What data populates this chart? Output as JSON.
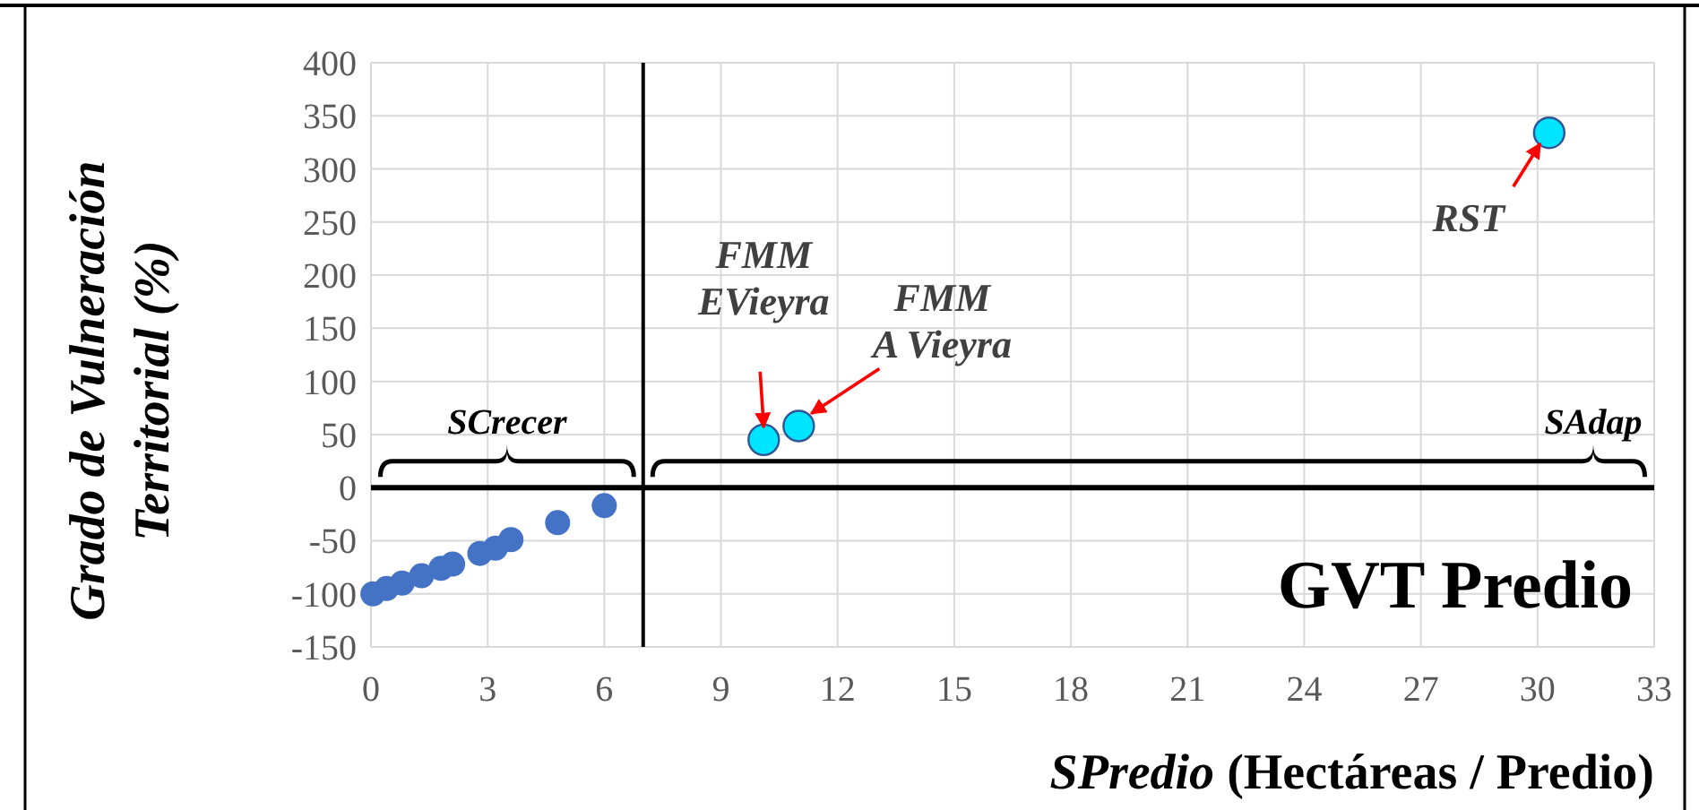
{
  "chart_data": {
    "type": "scatter",
    "xlabel": "SPredio (Hectáreas / Predio)",
    "ylabel": "Grado de Vulneración Territorial (%)",
    "xlim": [
      0,
      33
    ],
    "xticks": [
      0,
      3,
      6,
      9,
      12,
      15,
      18,
      21,
      24,
      27,
      30,
      33
    ],
    "ylim": [
      -150,
      400
    ],
    "yticks": [
      -150,
      -100,
      -50,
      0,
      50,
      100,
      150,
      200,
      250,
      300,
      350,
      400
    ],
    "grid": true,
    "marker": "circle",
    "series": [
      {
        "color": "#4472c4",
        "x": [
          0.05,
          0.4,
          0.8,
          1.3,
          1.8,
          2.1,
          2.8,
          3.2,
          3.6,
          4.8,
          6.0
        ],
        "values": [
          -100,
          -95,
          -90,
          -83,
          -76,
          -72,
          -62,
          -57,
          -49,
          -33,
          -17
        ]
      },
      {
        "color": "#00e5ff",
        "x": [
          10.1,
          11.0,
          30.3
        ],
        "values": [
          45,
          58,
          334
        ]
      }
    ],
    "ref_lines": [
      {
        "axis": "x",
        "value": 7,
        "color": "#000000"
      },
      {
        "axis": "y",
        "value": 0,
        "color": "#000000"
      }
    ],
    "annotations": [
      {
        "text": "FMM EVieyra",
        "x": 10.1,
        "y": 45
      },
      {
        "text": "FMM A Vieyra",
        "x": 11.0,
        "y": 58
      },
      {
        "text": "RST",
        "x": 30.3,
        "y": 334
      },
      "SCrecer",
      "SAdap",
      "GVT Predio"
    ]
  }
}
